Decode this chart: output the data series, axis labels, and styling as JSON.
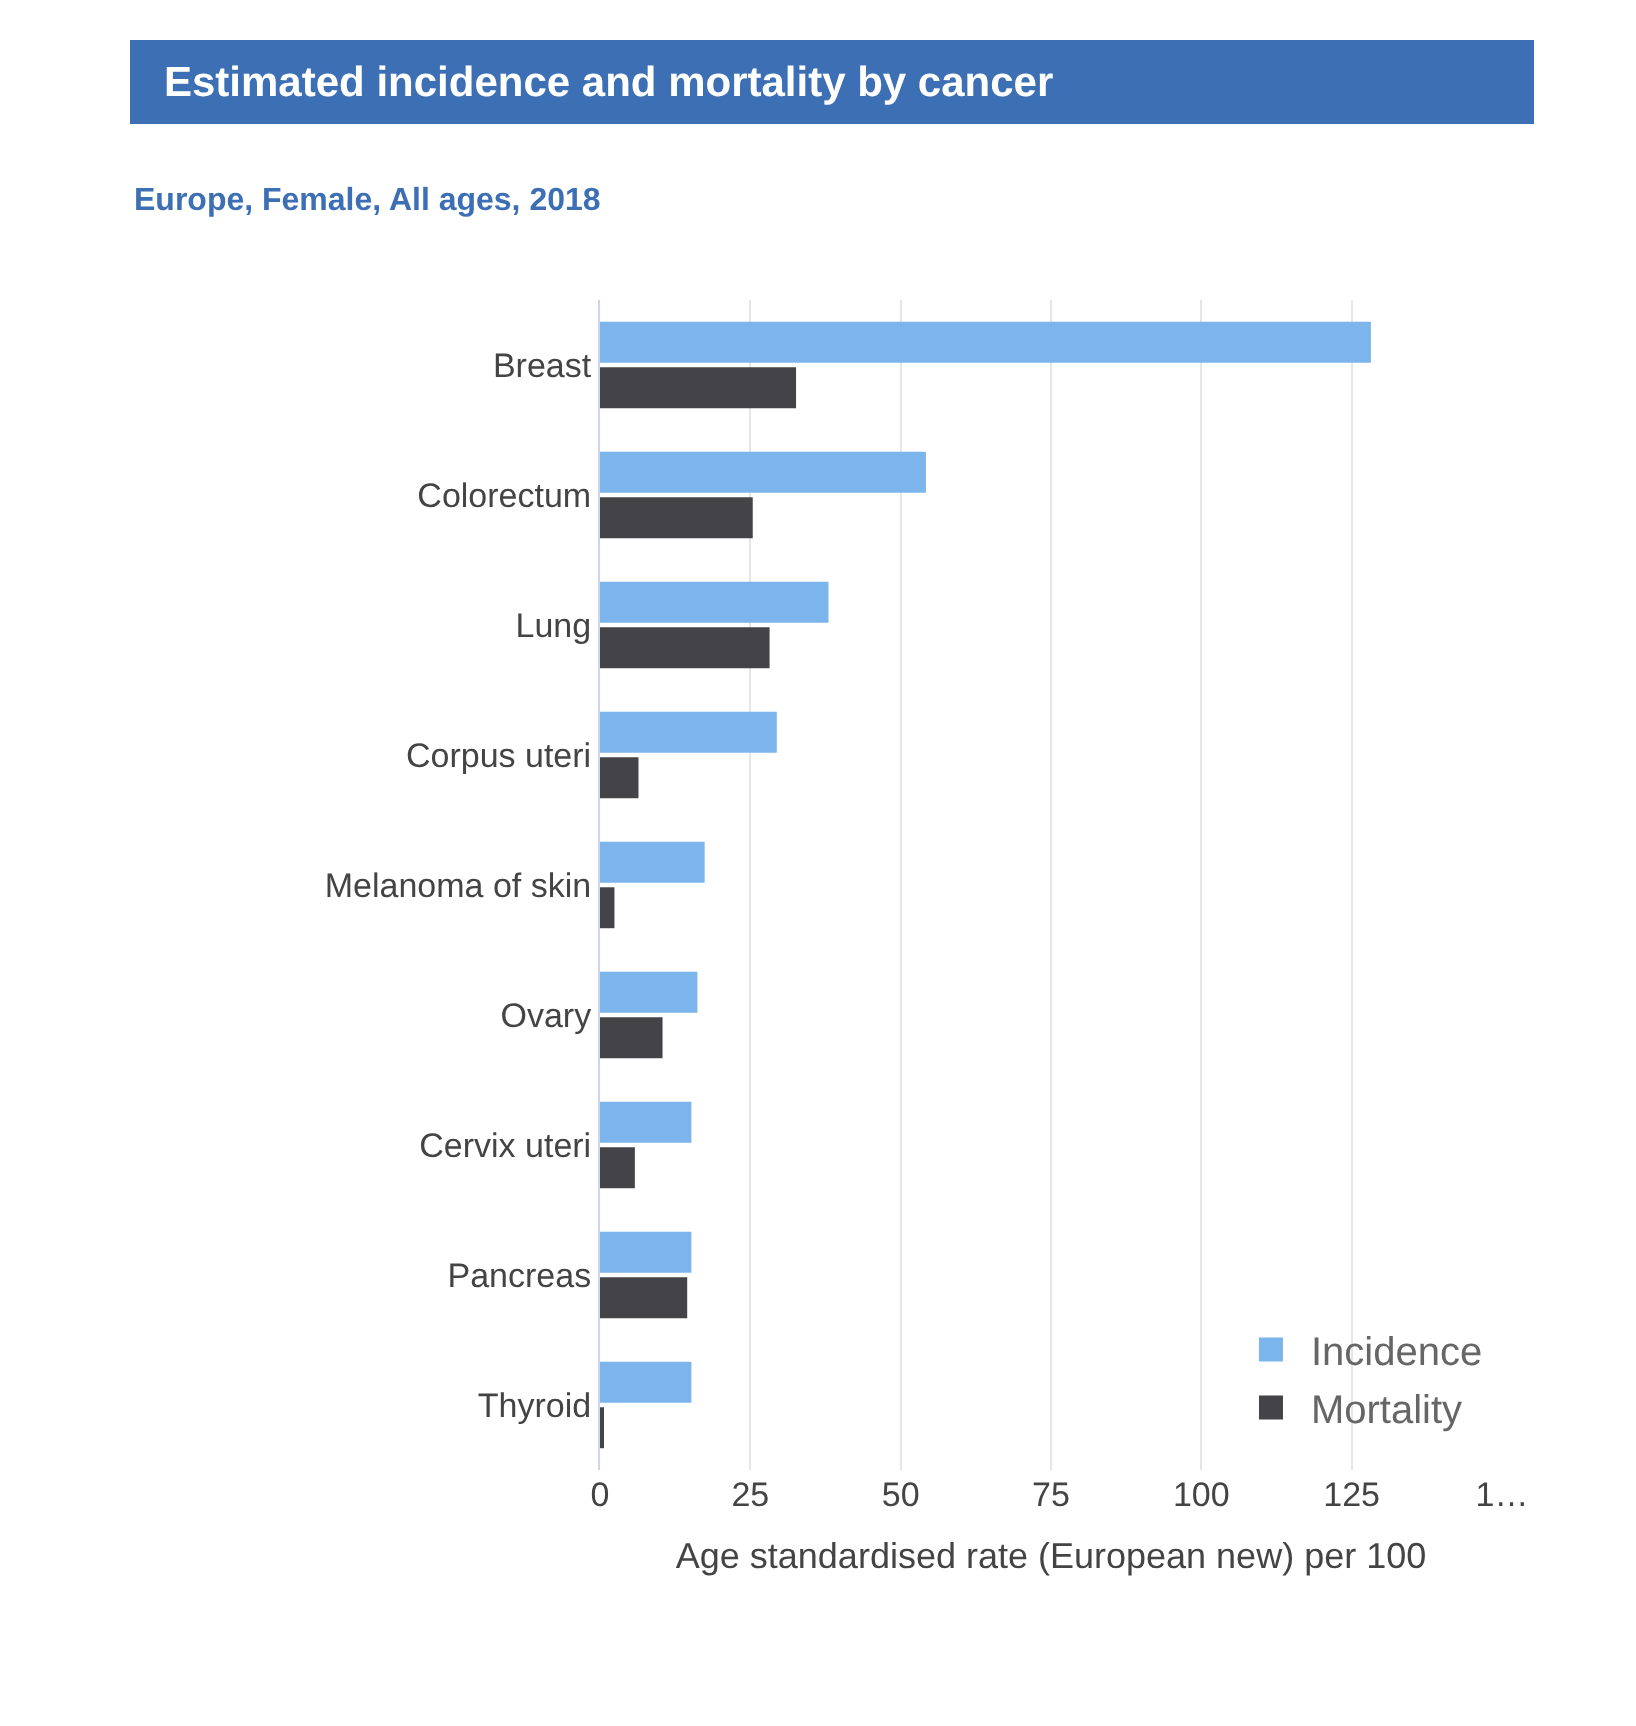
{
  "chart_data": {
    "type": "bar",
    "orientation": "horizontal",
    "title": "Estimated incidence and mortality by cancer",
    "subtitle": "Europe, Female, All ages, 2018",
    "xlabel": "Age standardised rate (European new) per 100",
    "categories": [
      "Breast",
      "Colorectum",
      "Lung",
      "Corpus uteri",
      "Melanoma of skin",
      "Ovary",
      "Cervix uteri",
      "Pancreas",
      "Thyroid"
    ],
    "series": [
      {
        "name": "Incidence",
        "color": "#7cb5ec",
        "values": [
          128.2,
          54.2,
          38,
          29.4,
          17.4,
          16.2,
          15.2,
          15.2,
          15.2
        ]
      },
      {
        "name": "Mortality",
        "color": "#434348",
        "values": [
          32.6,
          25.4,
          28.2,
          6.4,
          2.4,
          10.4,
          5.8,
          14.5,
          0.6
        ]
      }
    ],
    "xlim": [
      0,
      150
    ],
    "xticks": [
      0,
      25,
      50,
      75,
      100,
      125,
      {
        "value": 150,
        "label": "1…"
      }
    ],
    "grid": "x",
    "legend": "bottom right"
  }
}
